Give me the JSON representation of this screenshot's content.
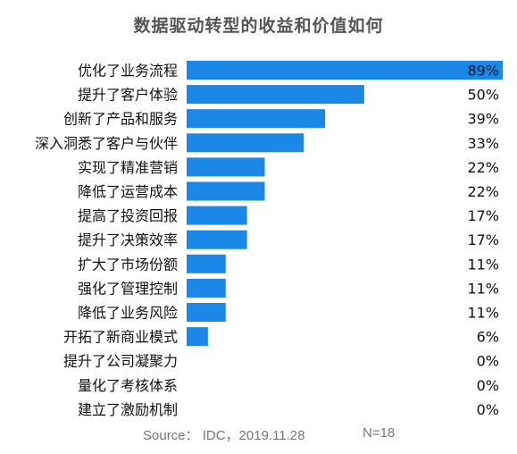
{
  "chart_data": {
    "type": "bar",
    "orientation": "horizontal",
    "title": "数据驱动转型的收益和价值如何",
    "categories": [
      "优化了业务流程",
      "提升了客户体验",
      "创新了产品和服务",
      "深入洞悉了客户与伙伴",
      "实现了精准营销",
      "降低了运营成本",
      "提高了投资回报",
      "提升了决策效率",
      "扩大了市场份额",
      "强化了管理控制",
      "降低了业务风险",
      "开拓了新商业模式",
      "提升了公司凝聚力",
      "量化了考核体系",
      "建立了激励机制"
    ],
    "values": [
      89,
      50,
      39,
      33,
      22,
      22,
      17,
      17,
      11,
      11,
      11,
      6,
      0,
      0,
      0
    ],
    "value_labels": [
      "89%",
      "50%",
      "39%",
      "33%",
      "22%",
      "22%",
      "17%",
      "17%",
      "11%",
      "11%",
      "11%",
      "6%",
      "0%",
      "0%",
      "0%"
    ],
    "unit": "%",
    "bar_color": "#1b87e6",
    "grid": false,
    "legend": "none"
  },
  "source": {
    "text": "Source：  IDC，2019.11.28",
    "n": "N=18"
  }
}
